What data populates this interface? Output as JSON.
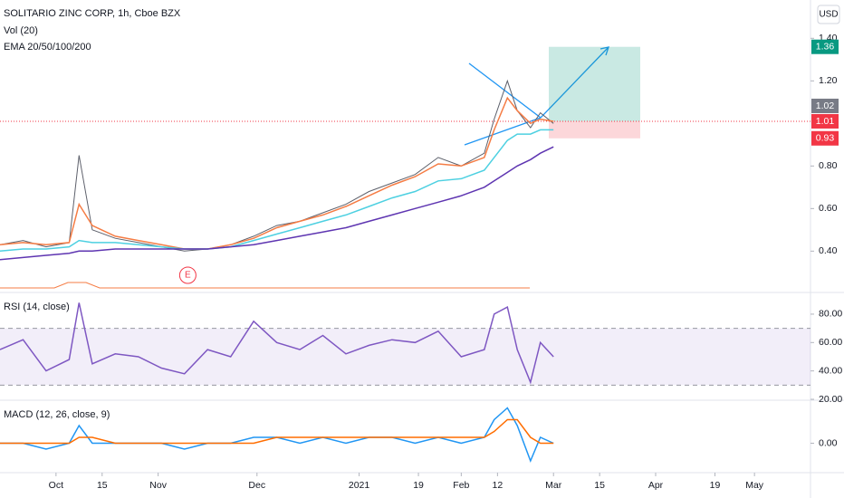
{
  "header": {
    "title": "SOLITARIO ZINC CORP, 1h, Cboe BZX",
    "volume": "Vol (20)",
    "ema": "EMA 20/50/100/200",
    "currency": "USD"
  },
  "chart_data": [
    {
      "type": "line",
      "x": [
        "2020-09-14",
        "2020-09-21",
        "2020-09-28",
        "2020-10-05",
        "2020-10-08",
        "2020-10-12",
        "2020-10-19",
        "2020-10-26",
        "2020-11-02",
        "2020-11-09",
        "2020-11-16",
        "2020-11-23",
        "2020-11-30",
        "2020-12-07",
        "2020-12-14",
        "2020-12-21",
        "2020-12-28",
        "2021-01-04",
        "2021-01-11",
        "2021-01-18",
        "2021-01-25",
        "2021-02-01",
        "2021-02-08",
        "2021-02-11",
        "2021-02-15",
        "2021-02-18",
        "2021-02-22",
        "2021-02-25",
        "2021-03-01"
      ],
      "series": [
        {
          "color": "#5d606b",
          "values": [
            0.43,
            0.45,
            0.42,
            0.44,
            0.85,
            0.5,
            0.46,
            0.44,
            0.42,
            0.4,
            0.41,
            0.43,
            0.47,
            0.52,
            0.54,
            0.58,
            0.62,
            0.68,
            0.72,
            0.76,
            0.84,
            0.8,
            0.86,
            1.02,
            1.2,
            1.06,
            0.98,
            1.05,
            1.0
          ]
        },
        {
          "color": "#f57c44",
          "values": [
            0.43,
            0.44,
            0.43,
            0.44,
            0.62,
            0.52,
            0.47,
            0.45,
            0.43,
            0.41,
            0.41,
            0.43,
            0.46,
            0.51,
            0.54,
            0.57,
            0.61,
            0.66,
            0.71,
            0.75,
            0.81,
            0.8,
            0.84,
            0.97,
            1.12,
            1.06,
            1.0,
            1.02,
            1.01
          ]
        },
        {
          "color": "#4dd0e1",
          "values": [
            0.4,
            0.41,
            0.41,
            0.42,
            0.45,
            0.44,
            0.44,
            0.43,
            0.42,
            0.41,
            0.41,
            0.42,
            0.45,
            0.48,
            0.51,
            0.54,
            0.57,
            0.61,
            0.65,
            0.68,
            0.73,
            0.74,
            0.78,
            0.84,
            0.92,
            0.95,
            0.95,
            0.97,
            0.97
          ]
        },
        {
          "color": "#5e35b1",
          "values": [
            0.36,
            0.37,
            0.38,
            0.39,
            0.4,
            0.4,
            0.41,
            0.41,
            0.41,
            0.41,
            0.41,
            0.42,
            0.43,
            0.45,
            0.47,
            0.49,
            0.51,
            0.54,
            0.57,
            0.6,
            0.63,
            0.66,
            0.7,
            0.73,
            0.77,
            0.8,
            0.83,
            0.86,
            0.89
          ]
        }
      ],
      "xlim": [
        "2020-09-14",
        "2021-05-18"
      ],
      "ylim": [
        0.21,
        1.58
      ],
      "yticks": [
        {
          "value": 1.4,
          "label": "1.40"
        },
        {
          "value": 1.2,
          "label": "1.20"
        },
        {
          "value": 0.8,
          "label": "0.80"
        },
        {
          "value": 0.6,
          "label": "0.60"
        },
        {
          "value": 0.4,
          "label": "0.40"
        }
      ],
      "price_labels": [
        {
          "value": 1.36,
          "color": "#089981"
        },
        {
          "value": 1.02,
          "color": "#787b86"
        },
        {
          "value": 1.01,
          "color": "#f23645"
        },
        {
          "value": 0.93,
          "color": "#f23645"
        }
      ],
      "events": [
        {
          "label": "E",
          "x": "2020-11-10"
        }
      ]
    },
    {
      "type": "line",
      "title": "RSI (14, close)",
      "x": [
        "2020-09-14",
        "2020-09-21",
        "2020-09-28",
        "2020-10-05",
        "2020-10-08",
        "2020-10-12",
        "2020-10-19",
        "2020-10-26",
        "2020-11-02",
        "2020-11-09",
        "2020-11-16",
        "2020-11-23",
        "2020-11-30",
        "2020-12-07",
        "2020-12-14",
        "2020-12-21",
        "2020-12-28",
        "2021-01-04",
        "2021-01-11",
        "2021-01-18",
        "2021-01-25",
        "2021-02-01",
        "2021-02-08",
        "2021-02-11",
        "2021-02-15",
        "2021-02-18",
        "2021-02-22",
        "2021-02-25",
        "2021-03-01"
      ],
      "series": [
        {
          "color": "#7e57c2",
          "values": [
            55,
            62,
            40,
            48,
            88,
            45,
            52,
            50,
            42,
            38,
            55,
            50,
            75,
            60,
            55,
            65,
            52,
            58,
            62,
            60,
            68,
            50,
            55,
            80,
            85,
            55,
            32,
            60,
            50
          ]
        }
      ],
      "bands": [
        30,
        70
      ],
      "xlim": [
        "2020-09-14",
        "2021-05-18"
      ],
      "ylim": [
        20,
        94
      ],
      "yticks": [
        {
          "value": 80,
          "label": "80.00"
        },
        {
          "value": 60,
          "label": "60.00"
        },
        {
          "value": 40,
          "label": "40.00"
        },
        {
          "value": 20,
          "label": "20.00"
        }
      ]
    },
    {
      "type": "line",
      "title": "MACD (12, 26, close, 9)",
      "x": [
        "2020-09-14",
        "2020-09-21",
        "2020-09-28",
        "2020-10-05",
        "2020-10-08",
        "2020-10-12",
        "2020-10-19",
        "2020-10-26",
        "2020-11-02",
        "2020-11-09",
        "2020-11-16",
        "2020-11-23",
        "2020-11-30",
        "2020-12-07",
        "2020-12-14",
        "2020-12-21",
        "2020-12-28",
        "2021-01-04",
        "2021-01-11",
        "2021-01-18",
        "2021-01-25",
        "2021-02-01",
        "2021-02-08",
        "2021-02-11",
        "2021-02-15",
        "2021-02-18",
        "2021-02-22",
        "2021-02-25",
        "2021-03-01"
      ],
      "series": [
        {
          "color": "#2196f3",
          "values": [
            0.0,
            0.0,
            -0.01,
            0.0,
            0.03,
            0.0,
            0.0,
            0.0,
            0.0,
            -0.01,
            0.0,
            0.0,
            0.01,
            0.01,
            0.0,
            0.01,
            0.0,
            0.01,
            0.01,
            0.0,
            0.01,
            0.0,
            0.01,
            0.04,
            0.06,
            0.03,
            -0.03,
            0.01,
            0.0
          ]
        },
        {
          "color": "#ff6d00",
          "values": [
            0.0,
            0.0,
            0.0,
            0.0,
            0.01,
            0.01,
            0.0,
            0.0,
            0.0,
            0.0,
            0.0,
            0.0,
            0.0,
            0.01,
            0.01,
            0.01,
            0.01,
            0.01,
            0.01,
            0.01,
            0.01,
            0.01,
            0.01,
            0.02,
            0.04,
            0.04,
            0.01,
            0.0,
            0.0
          ]
        }
      ],
      "xlim": [
        "2020-09-14",
        "2021-05-18"
      ],
      "ylim": [
        -0.05,
        0.07
      ],
      "yticks": [
        {
          "value": 0,
          "label": "0.00"
        }
      ],
      "xticks": [
        {
          "value": "2020-10-01",
          "label": "Oct"
        },
        {
          "value": "2020-10-15",
          "label": "15"
        },
        {
          "value": "2020-11-01",
          "label": "Nov"
        },
        {
          "value": "2020-12-01",
          "label": "Dec"
        },
        {
          "value": "2021-01-01",
          "label": "2021"
        },
        {
          "value": "2021-01-19",
          "label": "19"
        },
        {
          "value": "2021-02-01",
          "label": "Feb"
        },
        {
          "value": "2021-02-12",
          "label": "12"
        },
        {
          "value": "2021-03-01",
          "label": "Mar"
        },
        {
          "value": "2021-03-15",
          "label": "15"
        },
        {
          "value": "2021-04-01",
          "label": "Apr"
        },
        {
          "value": "2021-04-19",
          "label": "19"
        },
        {
          "value": "2021-05-01",
          "label": "May"
        }
      ]
    }
  ]
}
